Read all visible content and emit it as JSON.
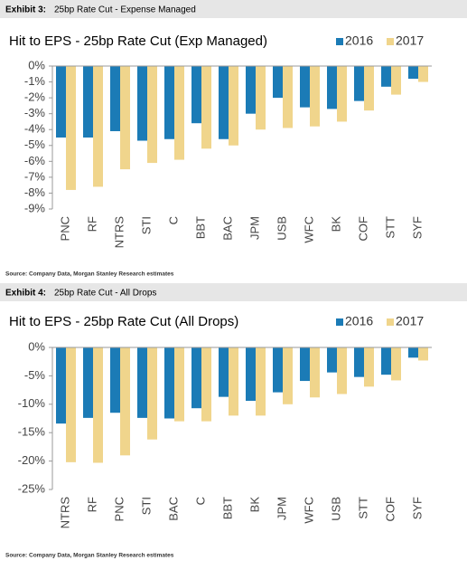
{
  "exhibits": [
    {
      "label": "Exhibit 3:",
      "caption": "25bp Rate Cut - Expense Managed",
      "source": "Source: Company Data, Morgan Stanley Research estimates"
    },
    {
      "label": "Exhibit 4:",
      "caption": "25bp Rate Cut - All Drops",
      "source": "Source: Company Data, Morgan Stanley Research estimates"
    }
  ],
  "chart_data": [
    {
      "type": "bar",
      "title": "Hit to EPS - 25bp Rate Cut (Exp Managed)",
      "categories": [
        "PNC",
        "RF",
        "NTRS",
        "STI",
        "C",
        "BBT",
        "BAC",
        "JPM",
        "USB",
        "WFC",
        "BK",
        "COF",
        "STT",
        "SYF"
      ],
      "series": [
        {
          "name": "2016",
          "color": "#1b7bb6",
          "values": [
            -4.5,
            -4.5,
            -4.1,
            -4.7,
            -4.6,
            -3.6,
            -4.6,
            -3.0,
            -2.0,
            -2.6,
            -2.7,
            -2.2,
            -1.3,
            -0.8
          ]
        },
        {
          "name": "2017",
          "color": "#f0d58c",
          "values": [
            -7.8,
            -7.6,
            -6.5,
            -6.1,
            -5.9,
            -5.2,
            -5.0,
            -4.0,
            -3.9,
            -3.8,
            -3.5,
            -2.8,
            -1.8,
            -1.0
          ]
        }
      ],
      "ylim": [
        -9,
        0
      ],
      "yticks": [
        {
          "value": 0,
          "label": "0%"
        },
        {
          "value": -1,
          "label": "-1%"
        },
        {
          "value": -2,
          "label": "-2%"
        },
        {
          "value": -3,
          "label": "-3%"
        },
        {
          "value": -4,
          "label": "-4%"
        },
        {
          "value": -5,
          "label": "-5%"
        },
        {
          "value": -6,
          "label": "-6%"
        },
        {
          "value": -7,
          "label": "-7%"
        },
        {
          "value": -8,
          "label": "-8%"
        },
        {
          "value": -9,
          "label": "-9%"
        }
      ],
      "legend": "top-right"
    },
    {
      "type": "bar",
      "title": "Hit to EPS - 25bp Rate Cut (All Drops)",
      "categories": [
        "NTRS",
        "RF",
        "PNC",
        "STI",
        "BAC",
        "C",
        "BBT",
        "BK",
        "JPM",
        "WFC",
        "USB",
        "STT",
        "COF",
        "SYF"
      ],
      "series": [
        {
          "name": "2016",
          "color": "#1b7bb6",
          "values": [
            -13.4,
            -12.4,
            -11.5,
            -12.4,
            -12.5,
            -10.7,
            -8.7,
            -9.4,
            -7.9,
            -5.9,
            -4.4,
            -5.2,
            -4.8,
            -1.8
          ]
        },
        {
          "name": "2017",
          "color": "#f0d58c",
          "values": [
            -20.2,
            -20.3,
            -19.0,
            -16.2,
            -13.0,
            -13.0,
            -12.0,
            -12.0,
            -10.0,
            -8.8,
            -8.2,
            -6.9,
            -5.8,
            -2.3
          ]
        }
      ],
      "ylim": [
        -25,
        0
      ],
      "yticks": [
        {
          "value": 0,
          "label": "0%"
        },
        {
          "value": -5,
          "label": "-5%"
        },
        {
          "value": -10,
          "label": "-10%"
        },
        {
          "value": -15,
          "label": "-15%"
        },
        {
          "value": -20,
          "label": "-20%"
        },
        {
          "value": -25,
          "label": "-25%"
        }
      ],
      "legend": "top-right"
    }
  ]
}
